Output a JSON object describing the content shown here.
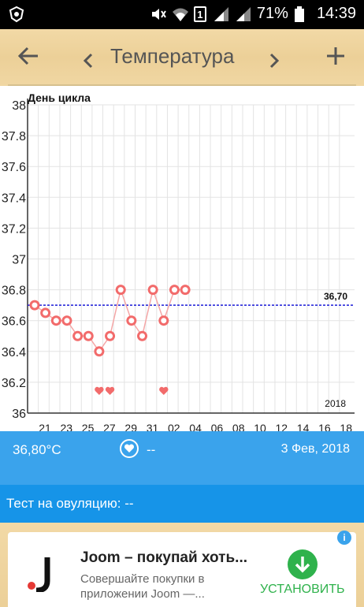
{
  "status_bar": {
    "battery": "71%",
    "time": "14:39",
    "sim_slot": "1"
  },
  "toolbar": {
    "title": "Температура",
    "back_icon": "arrow-left-icon",
    "prev_icon": "chevron-left-icon",
    "next_icon": "chevron-right-icon",
    "add_icon": "plus-icon"
  },
  "colors": {
    "toolbar_bg": "#ecd098",
    "panel_blue": "#3aa3ec",
    "panel_blue_dark": "#1694e8",
    "point": "#f26b6b",
    "line": "#f5a6a6",
    "coverline": "#1a1ad6",
    "install_green": "#2fb24c"
  },
  "chart_data": {
    "type": "line",
    "ylabel": "День цикла",
    "ylim": [
      36,
      38
    ],
    "yticks": [
      "36",
      "36.2",
      "36.4",
      "36.6",
      "36.8",
      "37",
      "37.2",
      "37.4",
      "37.6",
      "37.8",
      "38"
    ],
    "xticks": [
      "21",
      "23",
      "25",
      "27",
      "29",
      "31",
      "02",
      "04",
      "06",
      "08",
      "10",
      "12",
      "14",
      "16",
      "18"
    ],
    "x_start_day": 20,
    "series": [
      {
        "values": [
          36.7,
          36.65,
          36.6,
          36.6,
          36.5,
          36.5,
          36.4,
          36.5,
          36.8,
          36.6,
          36.5,
          36.8,
          36.6,
          36.8,
          36.8
        ]
      }
    ],
    "heart_days": [
      26,
      27,
      32
    ],
    "coverline": {
      "value": 36.7,
      "label": "36,70"
    },
    "year_label": "2018",
    "grid": true
  },
  "summary": {
    "temperature": "36,80°C",
    "heart_value": "--",
    "date": "3 Фев, 2018"
  },
  "ovulation": {
    "label": "Тест на овуляцию: --"
  },
  "ad": {
    "title": "Joom – покупай хоть...",
    "desc_line1": "Совершайте покупки в",
    "desc_line2": "приложении Joom —...",
    "install_label": "УСТАНОВИТЬ",
    "info_icon": "info-icon"
  }
}
